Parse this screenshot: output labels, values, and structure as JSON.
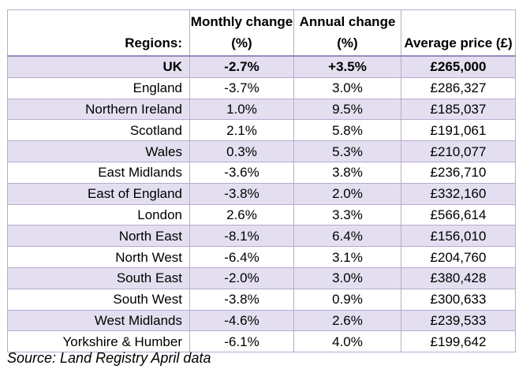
{
  "table": {
    "headers": [
      "Regions:",
      "Monthly change (%)",
      "Annual change (%)",
      "Average price (£)"
    ],
    "rows": [
      {
        "region": "UK",
        "monthly": "-2.7%",
        "annual": "+3.5%",
        "price": "£265,000"
      },
      {
        "region": "England",
        "monthly": "-3.7%",
        "annual": "3.0%",
        "price": "£286,327"
      },
      {
        "region": "Northern Ireland",
        "monthly": "1.0%",
        "annual": "9.5%",
        "price": "£185,037"
      },
      {
        "region": "Scotland",
        "monthly": "2.1%",
        "annual": "5.8%",
        "price": "£191,061"
      },
      {
        "region": "Wales",
        "monthly": "0.3%",
        "annual": "5.3%",
        "price": "£210,077"
      },
      {
        "region": "East Midlands",
        "monthly": "-3.6%",
        "annual": "3.8%",
        "price": "£236,710"
      },
      {
        "region": "East of England",
        "monthly": "-3.8%",
        "annual": "2.0%",
        "price": "£332,160"
      },
      {
        "region": "London",
        "monthly": "2.6%",
        "annual": "3.3%",
        "price": "£566,614"
      },
      {
        "region": "North East",
        "monthly": "-8.1%",
        "annual": "6.4%",
        "price": "£156,010"
      },
      {
        "region": "North West",
        "monthly": "-6.4%",
        "annual": "3.1%",
        "price": "£204,760"
      },
      {
        "region": "South East",
        "monthly": "-2.0%",
        "annual": "3.0%",
        "price": "£380,428"
      },
      {
        "region": "South West",
        "monthly": "-3.8%",
        "annual": "0.9%",
        "price": "£300,633"
      },
      {
        "region": "West Midlands",
        "monthly": "-4.6%",
        "annual": "2.6%",
        "price": "£239,533"
      },
      {
        "region": "Yorkshire & Humber",
        "monthly": "-6.1%",
        "annual": "4.0%",
        "price": "£199,642"
      }
    ]
  },
  "source": "Source: Land Registry April data",
  "colors": {
    "border": "#b9a9d0",
    "shade": "#e4dff0"
  }
}
